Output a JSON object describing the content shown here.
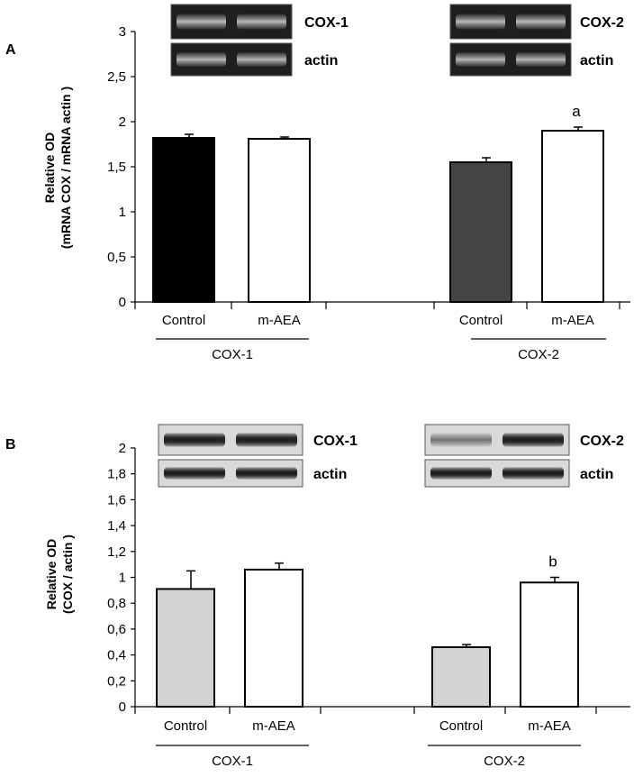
{
  "chart_data": [
    {
      "panel": "A",
      "type": "bar",
      "ylabel_line1": "Relative OD",
      "ylabel_line2": "(mRNA COX / mRNA actin )",
      "ylim": [
        0,
        3
      ],
      "yticks": [
        "0",
        "0,5",
        "1",
        "1,5",
        "2",
        "2,5",
        "3"
      ],
      "tick_values": [
        0,
        0.5,
        1,
        1.5,
        2,
        2.5,
        3
      ],
      "groups": [
        {
          "name": "COX-1",
          "bars": [
            {
              "label": "Control",
              "value": 1.82,
              "error": 0.04,
              "fill": "#000000",
              "annotation": ""
            },
            {
              "label": "m-AEA",
              "value": 1.81,
              "error": 0.02,
              "fill": "#ffffff",
              "annotation": ""
            }
          ],
          "blot": {
            "label1": "COX-1",
            "label2": "actin",
            "style": "gel"
          }
        },
        {
          "name": "COX-2",
          "bars": [
            {
              "label": "Control",
              "value": 1.55,
              "error": 0.05,
              "fill": "#444444",
              "annotation": ""
            },
            {
              "label": "m-AEA",
              "value": 1.9,
              "error": 0.04,
              "fill": "#ffffff",
              "annotation": "a"
            }
          ],
          "blot": {
            "label1": "COX-2",
            "label2": "actin",
            "style": "gel"
          }
        }
      ]
    },
    {
      "panel": "B",
      "type": "bar",
      "ylabel_line1": "Relative OD",
      "ylabel_line2": "(COX / actin )",
      "ylim": [
        0,
        2
      ],
      "yticks": [
        "0",
        "0,2",
        "0,4",
        "0,6",
        "0,8",
        "1",
        "1,2",
        "1,4",
        "1,6",
        "1,8",
        "2"
      ],
      "tick_values": [
        0,
        0.2,
        0.4,
        0.6,
        0.8,
        1,
        1.2,
        1.4,
        1.6,
        1.8,
        2
      ],
      "groups": [
        {
          "name": "COX-1",
          "bars": [
            {
              "label": "Control",
              "value": 0.91,
              "error": 0.14,
              "fill": "#d3d3d3",
              "annotation": ""
            },
            {
              "label": "m-AEA",
              "value": 1.06,
              "error": 0.05,
              "fill": "#ffffff",
              "annotation": ""
            }
          ],
          "blot": {
            "label1": "COX-1",
            "label2": "actin",
            "style": "western"
          }
        },
        {
          "name": "COX-2",
          "bars": [
            {
              "label": "Control",
              "value": 0.46,
              "error": 0.02,
              "fill": "#d3d3d3",
              "annotation": ""
            },
            {
              "label": "m-AEA",
              "value": 0.96,
              "error": 0.04,
              "fill": "#ffffff",
              "annotation": "b"
            }
          ],
          "blot": {
            "label1": "COX-2",
            "label2": "actin",
            "style": "western"
          }
        }
      ]
    }
  ]
}
